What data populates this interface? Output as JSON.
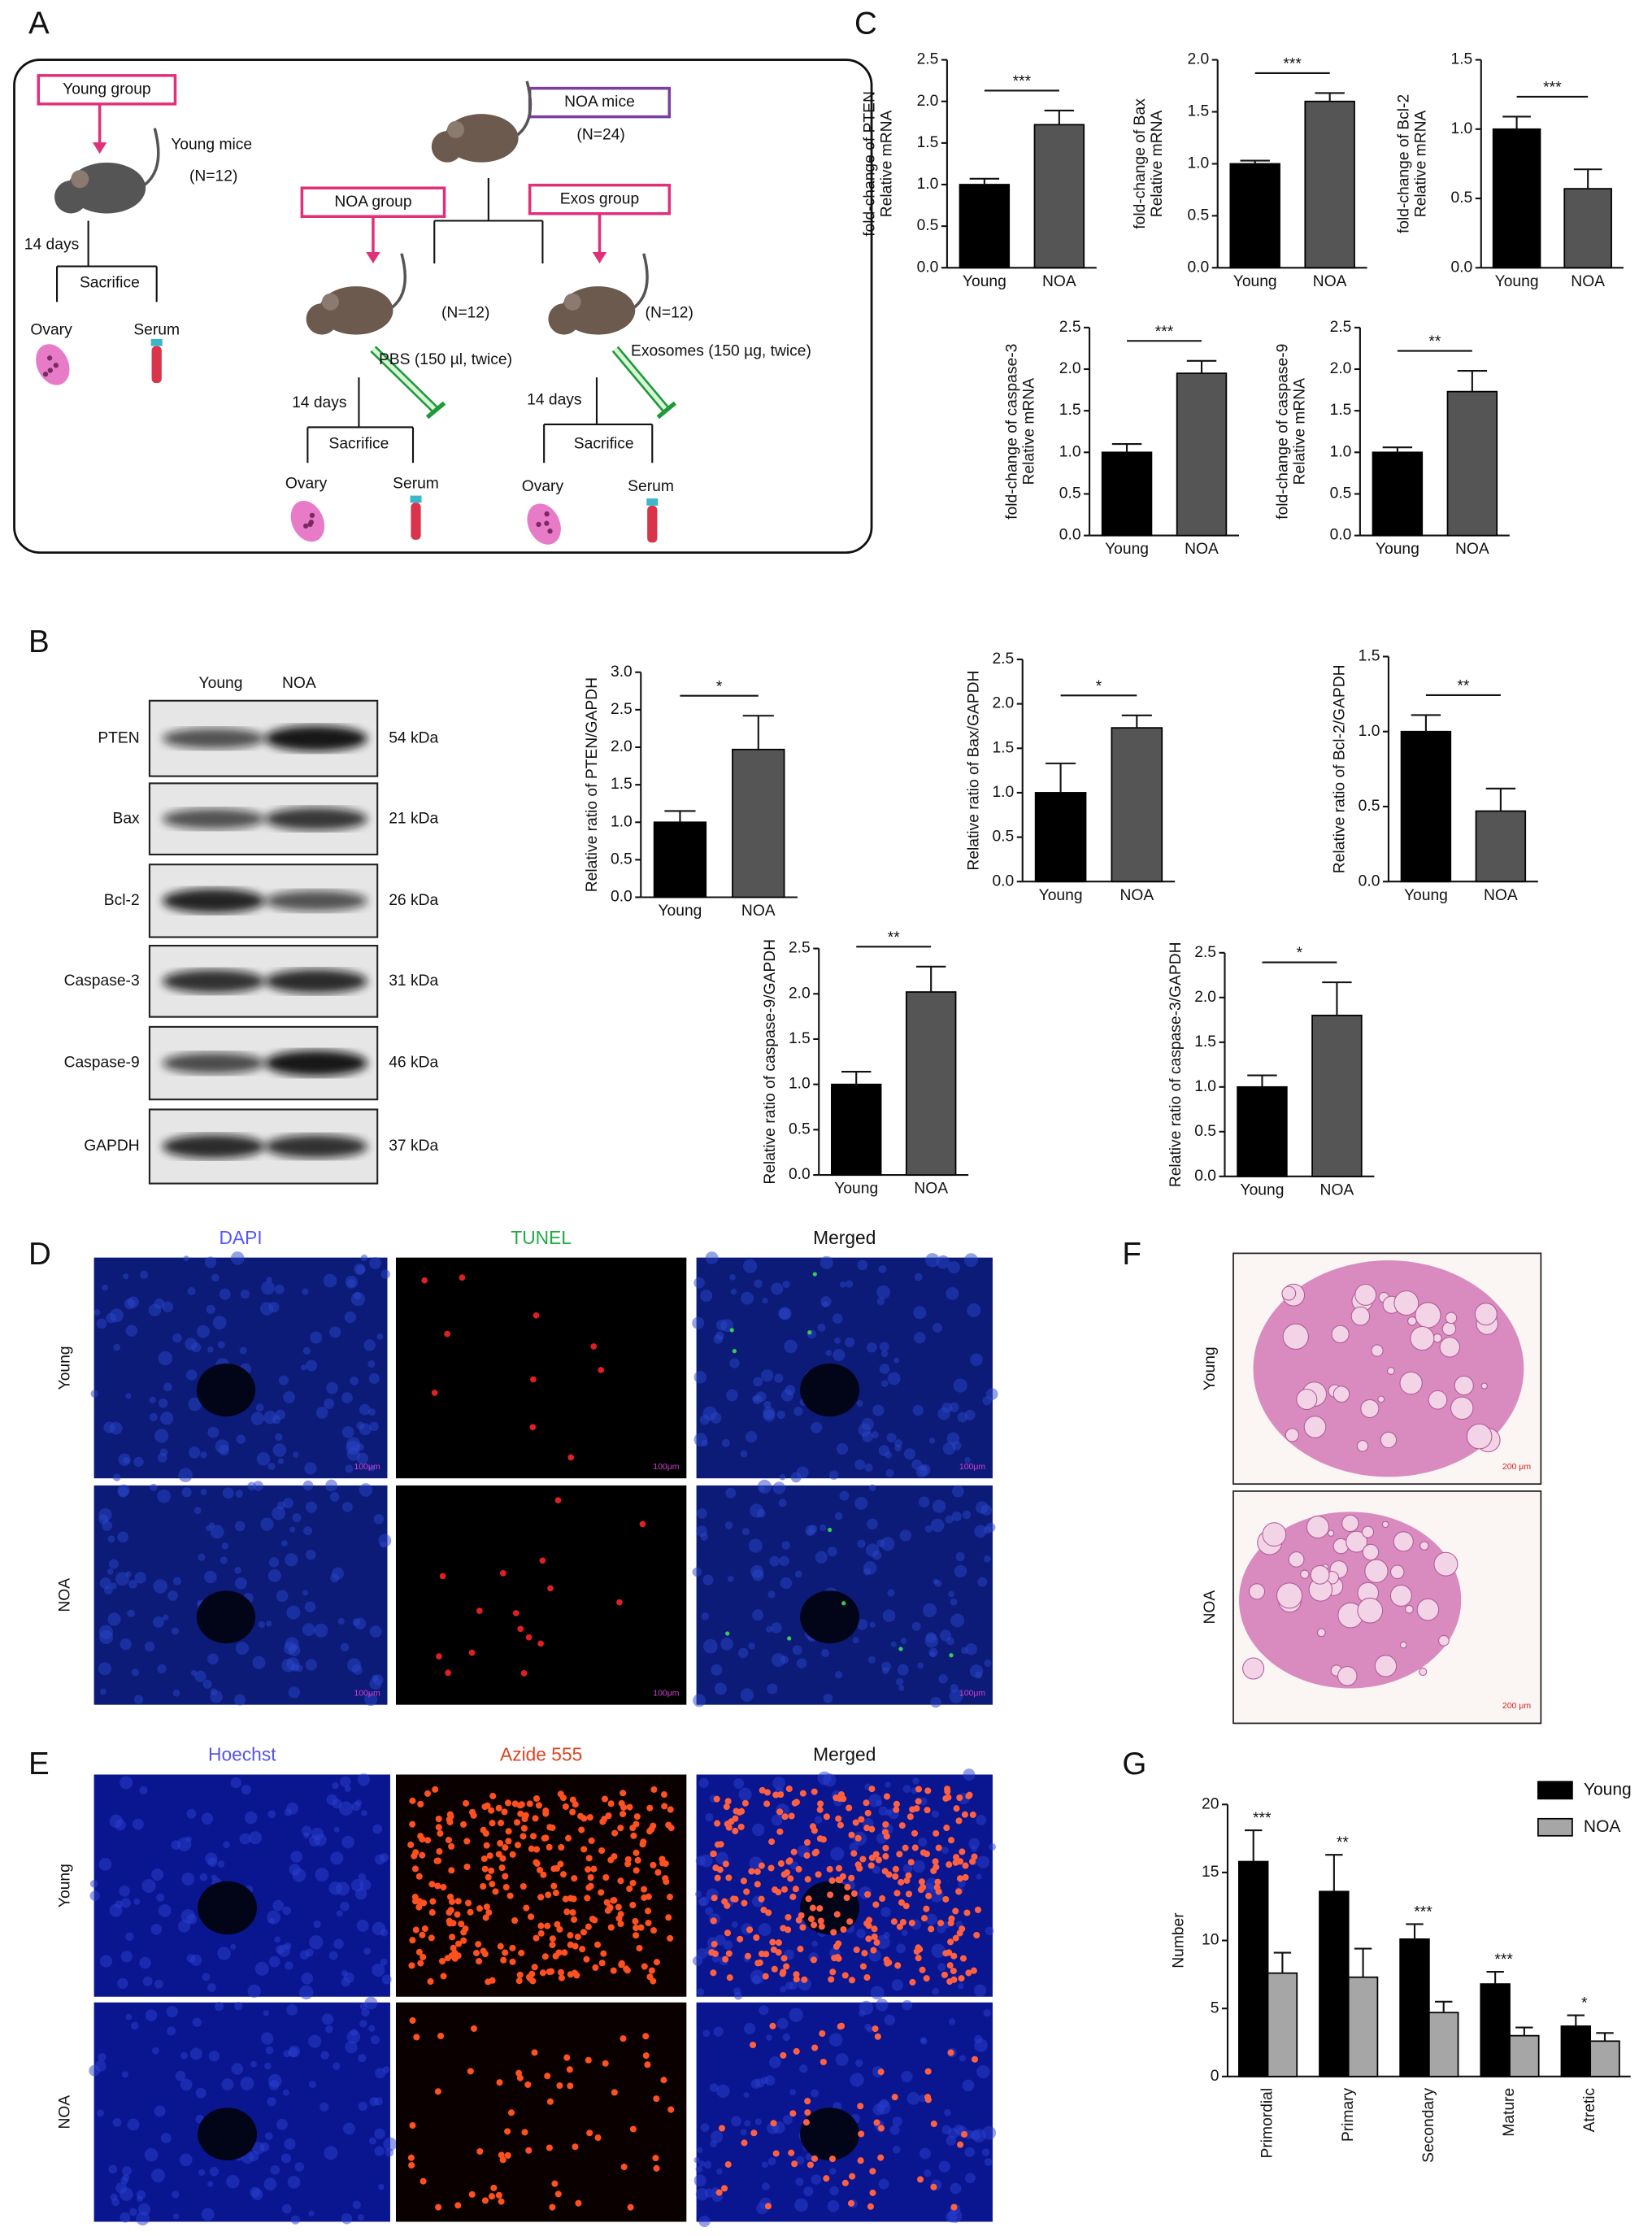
{
  "panel_labels": [
    "A",
    "B",
    "C",
    "D",
    "E",
    "F",
    "G"
  ],
  "diagram": {
    "young_group": "Young group",
    "young_mice": "Young mice",
    "young_n": "(N=12)",
    "days": "14 days",
    "sacrifice": "Sacrifice",
    "ovary": "Ovary",
    "serum": "Serum",
    "noa_mice": "NOA mice",
    "noa_n": "(N=24)",
    "noa_group": "NOA group",
    "exos_group": "Exos group",
    "group_n": "(N=12)",
    "pbs": "PBS (150 µl, twice)",
    "exosomes": "Exosomes (150 µg, twice)"
  },
  "blot": {
    "columns": [
      "Young",
      "NOA"
    ],
    "rows": [
      {
        "protein": "PTEN",
        "size": "54 kDa"
      },
      {
        "protein": "Bax",
        "size": "21 kDa"
      },
      {
        "protein": "Bcl-2",
        "size": "26 kDa"
      },
      {
        "protein": "Caspase-3",
        "size": "31 kDa"
      },
      {
        "protein": "Caspase-9",
        "size": "46 kDa"
      },
      {
        "protein": "GAPDH",
        "size": "37 kDa"
      }
    ]
  },
  "microscopy_d": {
    "columns": [
      "DAPI",
      "TUNEL",
      "Merged"
    ],
    "rows": [
      "Young",
      "NOA"
    ],
    "scale_bar": "100μm"
  },
  "microscopy_e": {
    "columns": [
      "Hoechst",
      "Azide 555",
      "Merged"
    ],
    "rows": [
      "Young",
      "NOA"
    ]
  },
  "histology_f": {
    "rows": [
      "Young",
      "NOA"
    ],
    "scale_bar": "200 μm"
  },
  "chart_data": [
    {
      "type": "bar",
      "ylabel": [
        "Relative mRNA",
        "fold-change of PTEN"
      ],
      "categories": [
        "Young",
        "NOA"
      ],
      "values": [
        1.0,
        1.72
      ],
      "errors": [
        0.07,
        0.17
      ],
      "colors": [
        "#000000",
        "#555555"
      ],
      "significance": "***",
      "ylim": [
        0,
        2.5
      ],
      "yticks": [
        {
          "value": 0,
          "label": "0.0"
        },
        0.5,
        {
          "value": 1,
          "label": "1.0"
        },
        1.5,
        {
          "value": 2,
          "label": "2.0"
        },
        2.5
      ]
    },
    {
      "type": "bar",
      "ylabel": [
        "Relative mRNA",
        "fold-change of Bax"
      ],
      "categories": [
        "Young",
        "NOA"
      ],
      "values": [
        1.0,
        1.6
      ],
      "errors": [
        0.03,
        0.08
      ],
      "colors": [
        "#000000",
        "#555555"
      ],
      "significance": "***",
      "ylim": [
        0,
        2
      ],
      "yticks": [
        {
          "value": 0,
          "label": "0.0"
        },
        0.5,
        {
          "value": 1,
          "label": "1.0"
        },
        1.5,
        {
          "value": 2,
          "label": "2.0"
        }
      ]
    },
    {
      "type": "bar",
      "ylabel": [
        "Relative mRNA",
        "fold-change of Bcl-2"
      ],
      "categories": [
        "Young",
        "NOA"
      ],
      "values": [
        1.0,
        0.57
      ],
      "errors": [
        0.09,
        0.14
      ],
      "colors": [
        "#000000",
        "#555555"
      ],
      "significance": "***",
      "ylim": [
        0,
        1.5
      ],
      "yticks": [
        {
          "value": 0,
          "label": "0.0"
        },
        0.5,
        {
          "value": 1,
          "label": "1.0"
        },
        1.5
      ]
    },
    {
      "type": "bar",
      "ylabel": [
        "Relative mRNA",
        "fold-change of caspase-3"
      ],
      "categories": [
        "Young",
        "NOA"
      ],
      "values": [
        1.0,
        1.95
      ],
      "errors": [
        0.1,
        0.15
      ],
      "colors": [
        "#000000",
        "#555555"
      ],
      "significance": "***",
      "ylim": [
        0,
        2.5
      ],
      "yticks": [
        {
          "value": 0,
          "label": "0.0"
        },
        0.5,
        {
          "value": 1,
          "label": "1.0"
        },
        1.5,
        {
          "value": 2,
          "label": "2.0"
        },
        2.5
      ]
    },
    {
      "type": "bar",
      "ylabel": [
        "Relative mRNA",
        "fold-change of caspase-9"
      ],
      "categories": [
        "Young",
        "NOA"
      ],
      "values": [
        1.0,
        1.73
      ],
      "errors": [
        0.06,
        0.25
      ],
      "colors": [
        "#000000",
        "#555555"
      ],
      "significance": "**",
      "ylim": [
        0,
        2.5
      ],
      "yticks": [
        {
          "value": 0,
          "label": "0.0"
        },
        0.5,
        {
          "value": 1,
          "label": "1.0"
        },
        1.5,
        {
          "value": 2,
          "label": "2.0"
        },
        2.5
      ]
    },
    {
      "type": "bar",
      "ylabel": [
        "Relative ratio of PTEN/GAPDH"
      ],
      "categories": [
        "Young",
        "NOA"
      ],
      "values": [
        1.0,
        1.97
      ],
      "errors": [
        0.15,
        0.45
      ],
      "colors": [
        "#000000",
        "#555555"
      ],
      "significance": "*",
      "ylim": [
        0,
        3
      ],
      "yticks": [
        {
          "value": 0,
          "label": "0.0"
        },
        0.5,
        {
          "value": 1,
          "label": "1.0"
        },
        1.5,
        {
          "value": 2,
          "label": "2.0"
        },
        2.5,
        {
          "value": 3,
          "label": "3.0"
        }
      ]
    },
    {
      "type": "bar",
      "ylabel": [
        "Relative ratio of Bax/GAPDH"
      ],
      "categories": [
        "Young",
        "NOA"
      ],
      "values": [
        1.0,
        1.73
      ],
      "errors": [
        0.33,
        0.14
      ],
      "colors": [
        "#000000",
        "#555555"
      ],
      "significance": "*",
      "ylim": [
        0,
        2.5
      ],
      "yticks": [
        {
          "value": 0,
          "label": "0.0"
        },
        0.5,
        {
          "value": 1,
          "label": "1.0"
        },
        1.5,
        {
          "value": 2,
          "label": "2.0"
        },
        2.5
      ]
    },
    {
      "type": "bar",
      "ylabel": [
        "Relative ratio of Bcl-2/GAPDH"
      ],
      "categories": [
        "Young",
        "NOA"
      ],
      "values": [
        1.0,
        0.47
      ],
      "errors": [
        0.11,
        0.15
      ],
      "colors": [
        "#000000",
        "#555555"
      ],
      "significance": "**",
      "ylim": [
        0,
        1.5
      ],
      "yticks": [
        {
          "value": 0,
          "label": "0.0"
        },
        0.5,
        {
          "value": 1,
          "label": "1.0"
        },
        1.5
      ]
    },
    {
      "type": "bar",
      "ylabel": [
        "Relative ratio of caspase-9/GAPDH"
      ],
      "categories": [
        "Young",
        "NOA"
      ],
      "values": [
        1.0,
        2.02
      ],
      "errors": [
        0.14,
        0.28
      ],
      "colors": [
        "#000000",
        "#555555"
      ],
      "significance": "**",
      "ylim": [
        0,
        2.5
      ],
      "yticks": [
        {
          "value": 0,
          "label": "0.0"
        },
        0.5,
        {
          "value": 1,
          "label": "1.0"
        },
        1.5,
        {
          "value": 2,
          "label": "2.0"
        },
        2.5
      ]
    },
    {
      "type": "bar",
      "ylabel": [
        "Relative ratio of caspase-3/GAPDH"
      ],
      "categories": [
        "Young",
        "NOA"
      ],
      "values": [
        1.0,
        1.8
      ],
      "errors": [
        0.13,
        0.37
      ],
      "colors": [
        "#000000",
        "#555555"
      ],
      "significance": "*",
      "ylim": [
        0,
        2.5
      ],
      "yticks": [
        {
          "value": 0,
          "label": "0.0"
        },
        0.5,
        {
          "value": 1,
          "label": "1.0"
        },
        1.5,
        {
          "value": 2,
          "label": "2.0"
        },
        2.5
      ]
    },
    {
      "type": "grouped_bar",
      "ylabel": [
        "Number"
      ],
      "categories": [
        "Primordial",
        "Primary",
        "Secondary",
        "Mature",
        "Atretic"
      ],
      "series": [
        {
          "name": "Young",
          "color": "#000000",
          "values": [
            15.8,
            13.6,
            10.1,
            6.8,
            3.7
          ],
          "errors": [
            2.3,
            2.7,
            1.1,
            0.9,
            0.8
          ]
        },
        {
          "name": "NOA",
          "color": "#a6a6a6",
          "values": [
            7.6,
            7.3,
            4.7,
            3.0,
            2.6
          ],
          "errors": [
            1.5,
            2.1,
            0.8,
            0.6,
            0.6
          ]
        }
      ],
      "significance": [
        "***",
        "**",
        "***",
        "***",
        "*"
      ],
      "legend": "upper right",
      "ylim": [
        0,
        20
      ],
      "yticks": [
        0,
        5,
        10,
        15,
        20
      ]
    }
  ]
}
